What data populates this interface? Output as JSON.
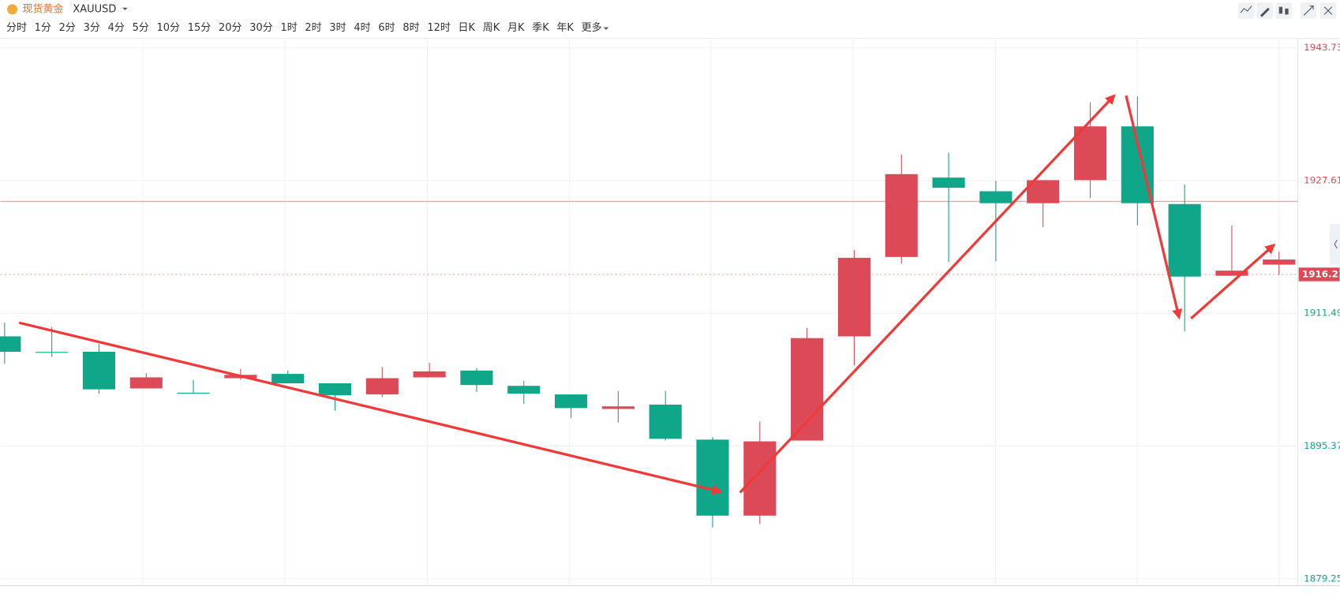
{
  "header": {
    "symbol_name": "现货黄金",
    "symbol_code": "XAUUSD",
    "intervals": [
      "分时",
      "1分",
      "2分",
      "3分",
      "4分",
      "5分",
      "10分",
      "15分",
      "20分",
      "30分",
      "1时",
      "2时",
      "3时",
      "4时",
      "6时",
      "8时",
      "12时",
      "日K",
      "周K",
      "月K",
      "季K",
      "年K",
      "更多"
    ],
    "active_interval": 10
  },
  "chart_data": {
    "type": "candlestick",
    "open": [
      1908.69,
      1906.8,
      1906.82,
      1902.37,
      1901.85,
      1903.61,
      1904.13,
      1902.99,
      1901.64,
      1903.71,
      1904.54,
      1902.68,
      1901.64,
      1899.88,
      1900.4,
      1896.15,
      1886.92,
      1896.04,
      1908.69,
      1918.33,
      1927.97,
      1926.31,
      1924.86,
      1927.66,
      1934.19,
      1924.76,
      1916.05,
      1917.4
    ],
    "high": [
      1910.35,
      1909.83,
      1907.76,
      1904.23,
      1903.4,
      1904.75,
      1904.54,
      1902.99,
      1904.96,
      1905.48,
      1904.85,
      1903.3,
      1901.64,
      1902.06,
      1902.06,
      1896.46,
      1898.32,
      1909.73,
      1919.16,
      1930.77,
      1930.98,
      1927.56,
      1927.66,
      1937.1,
      1937.82,
      1927.14,
      1922.17,
      1918.96
    ],
    "low": [
      1905.37,
      1906.2,
      1901.74,
      1902.37,
      1901.8,
      1903.4,
      1902.99,
      1899.67,
      1901.33,
      1903.71,
      1901.95,
      1900.5,
      1898.74,
      1898.22,
      1896.04,
      1885.47,
      1885.88,
      1896.04,
      1905.17,
      1917.5,
      1917.71,
      1917.81,
      1921.96,
      1925.48,
      1922.17,
      1909.31,
      1916.05,
      1916.15
    ],
    "close": [
      1906.82,
      1906.7,
      1902.26,
      1903.71,
      1901.8,
      1904.02,
      1902.99,
      1901.54,
      1903.61,
      1904.44,
      1902.78,
      1901.74,
      1899.98,
      1900.19,
      1896.25,
      1886.92,
      1895.94,
      1908.48,
      1918.23,
      1928.39,
      1926.73,
      1924.86,
      1927.66,
      1934.19,
      1924.86,
      1915.95,
      1916.67,
      1918.02
    ],
    "up_color": "#dc4a58",
    "down_color": "#0fa68a",
    "ylim": [
      1879.25,
      1943.73
    ],
    "yticks": [
      1943.73,
      1927.61,
      1911.49,
      1895.37,
      1879.25
    ],
    "last_price": 1916.21,
    "price_line": 1925.07,
    "grid": true
  }
}
